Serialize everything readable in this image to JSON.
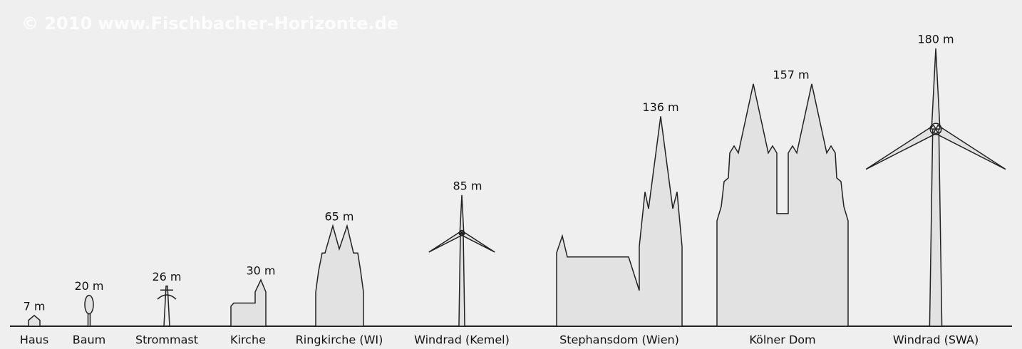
{
  "chart_data": {
    "type": "silhouette",
    "watermark": "© 2010 www.Fischbacher-Horizonte.de",
    "categories": [
      "Haus",
      "Baum",
      "Strommast",
      "Kirche",
      "Ringkirche (WI)",
      "Windrad (Kemel)",
      "Stephansdom (Wien)",
      "Kölner Dom",
      "Windrad (SWA)"
    ],
    "values": [
      7,
      20,
      26,
      30,
      65,
      85,
      136,
      157,
      180
    ],
    "value_labels": [
      "7 m",
      "20 m",
      "26 m",
      "30 m",
      "65 m",
      "85 m",
      "136 m",
      "157 m",
      "180 m"
    ],
    "color": "#e2e2e2"
  }
}
